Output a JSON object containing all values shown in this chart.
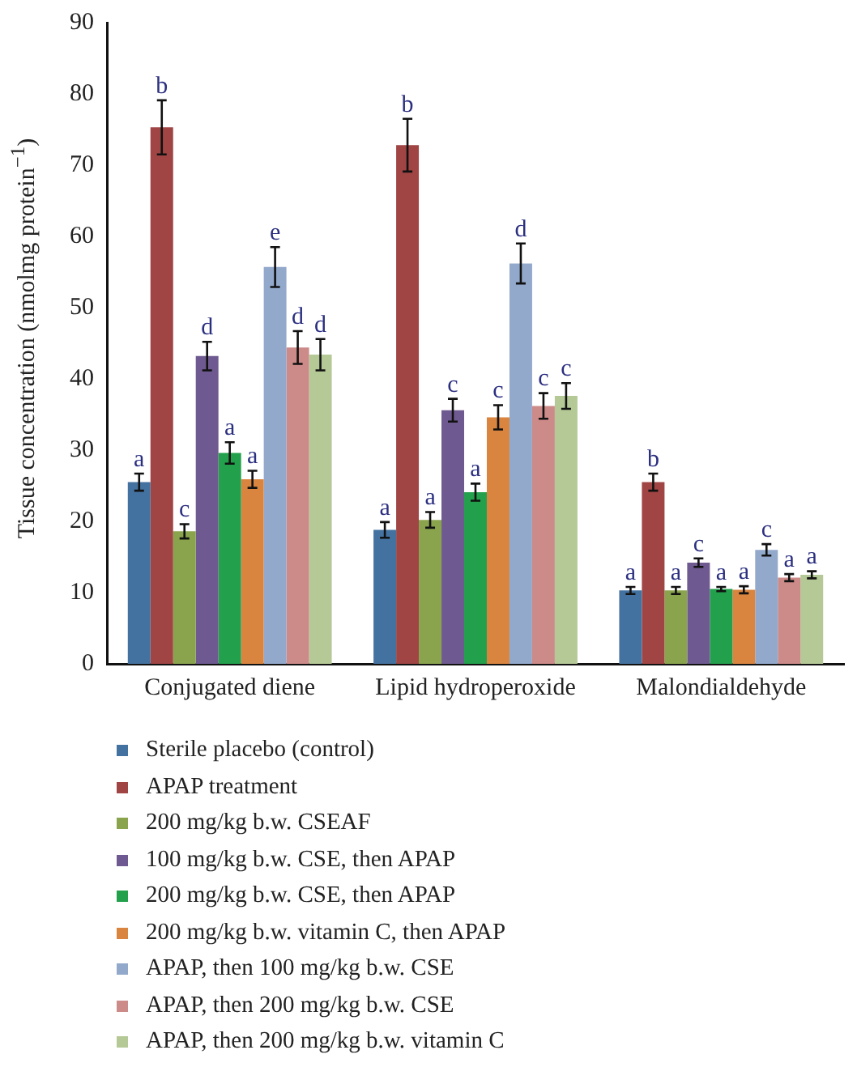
{
  "chart_data": {
    "type": "bar",
    "ylabel": "Tissue concentration (nmolmg protein$^{−1}$)",
    "categories": [
      "Conjugated diene",
      "Lipid hydroperoxide",
      "Malondialdehyde"
    ],
    "ylim": [
      0,
      90
    ],
    "yticks": [
      0,
      10,
      20,
      30,
      40,
      50,
      60,
      70,
      80,
      90
    ],
    "grid": false,
    "legend": "bottom",
    "series": [
      {
        "name": "Sterile placebo (control)",
        "color": "#4472a0",
        "values": [
          25.5,
          18.8,
          10.3
        ],
        "errors": [
          1.2,
          1.1,
          0.5
        ],
        "value_labels": [
          "a",
          "a",
          "a"
        ]
      },
      {
        "name": "APAP treatment",
        "color": "#a04444",
        "values": [
          75.3,
          72.8,
          25.5
        ],
        "errors": [
          3.8,
          3.7,
          1.2
        ],
        "value_labels": [
          "b",
          "b",
          "b"
        ]
      },
      {
        "name": "200 mg/kg b.w. CSEAF",
        "color": "#8aa44e",
        "values": [
          18.6,
          20.2,
          10.3
        ],
        "errors": [
          1.0,
          1.1,
          0.5
        ],
        "value_labels": [
          "c",
          "a",
          "a"
        ]
      },
      {
        "name": "100 mg/kg b.w. CSE, then APAP",
        "color": "#6e5a90",
        "values": [
          43.2,
          35.6,
          14.2
        ],
        "errors": [
          2.0,
          1.6,
          0.6
        ],
        "value_labels": [
          "d",
          "c",
          "c"
        ]
      },
      {
        "name": "200 mg/kg b.w. CSE, then APAP",
        "color": "#22a04c",
        "values": [
          29.6,
          24.1,
          10.5
        ],
        "errors": [
          1.5,
          1.2,
          0.3
        ],
        "value_labels": [
          "a",
          "a",
          "a"
        ]
      },
      {
        "name": "200 mg/kg b.w. vitamin C, then APAP",
        "color": "#d98540",
        "values": [
          25.9,
          34.6,
          10.4
        ],
        "errors": [
          1.2,
          1.7,
          0.5
        ],
        "value_labels": [
          "a",
          "c",
          "a"
        ]
      },
      {
        "name": "APAP, then 100 mg/kg b.w. CSE",
        "color": "#93a9cc",
        "values": [
          55.7,
          56.2,
          16.0
        ],
        "errors": [
          2.8,
          2.8,
          0.8
        ],
        "value_labels": [
          "e",
          "d",
          "c"
        ]
      },
      {
        "name": "APAP, then 200 mg/kg b.w. CSE",
        "color": "#cc8a88",
        "values": [
          44.4,
          36.2,
          12.1
        ],
        "errors": [
          2.3,
          1.8,
          0.5
        ],
        "value_labels": [
          "d",
          "c",
          "a"
        ]
      },
      {
        "name": "APAP, then 200 mg/kg b.w. vitamin C",
        "color": "#b5c996",
        "values": [
          43.4,
          37.6,
          12.5
        ],
        "errors": [
          2.2,
          1.8,
          0.5
        ],
        "value_labels": [
          "d",
          "c",
          "a"
        ]
      }
    ]
  }
}
